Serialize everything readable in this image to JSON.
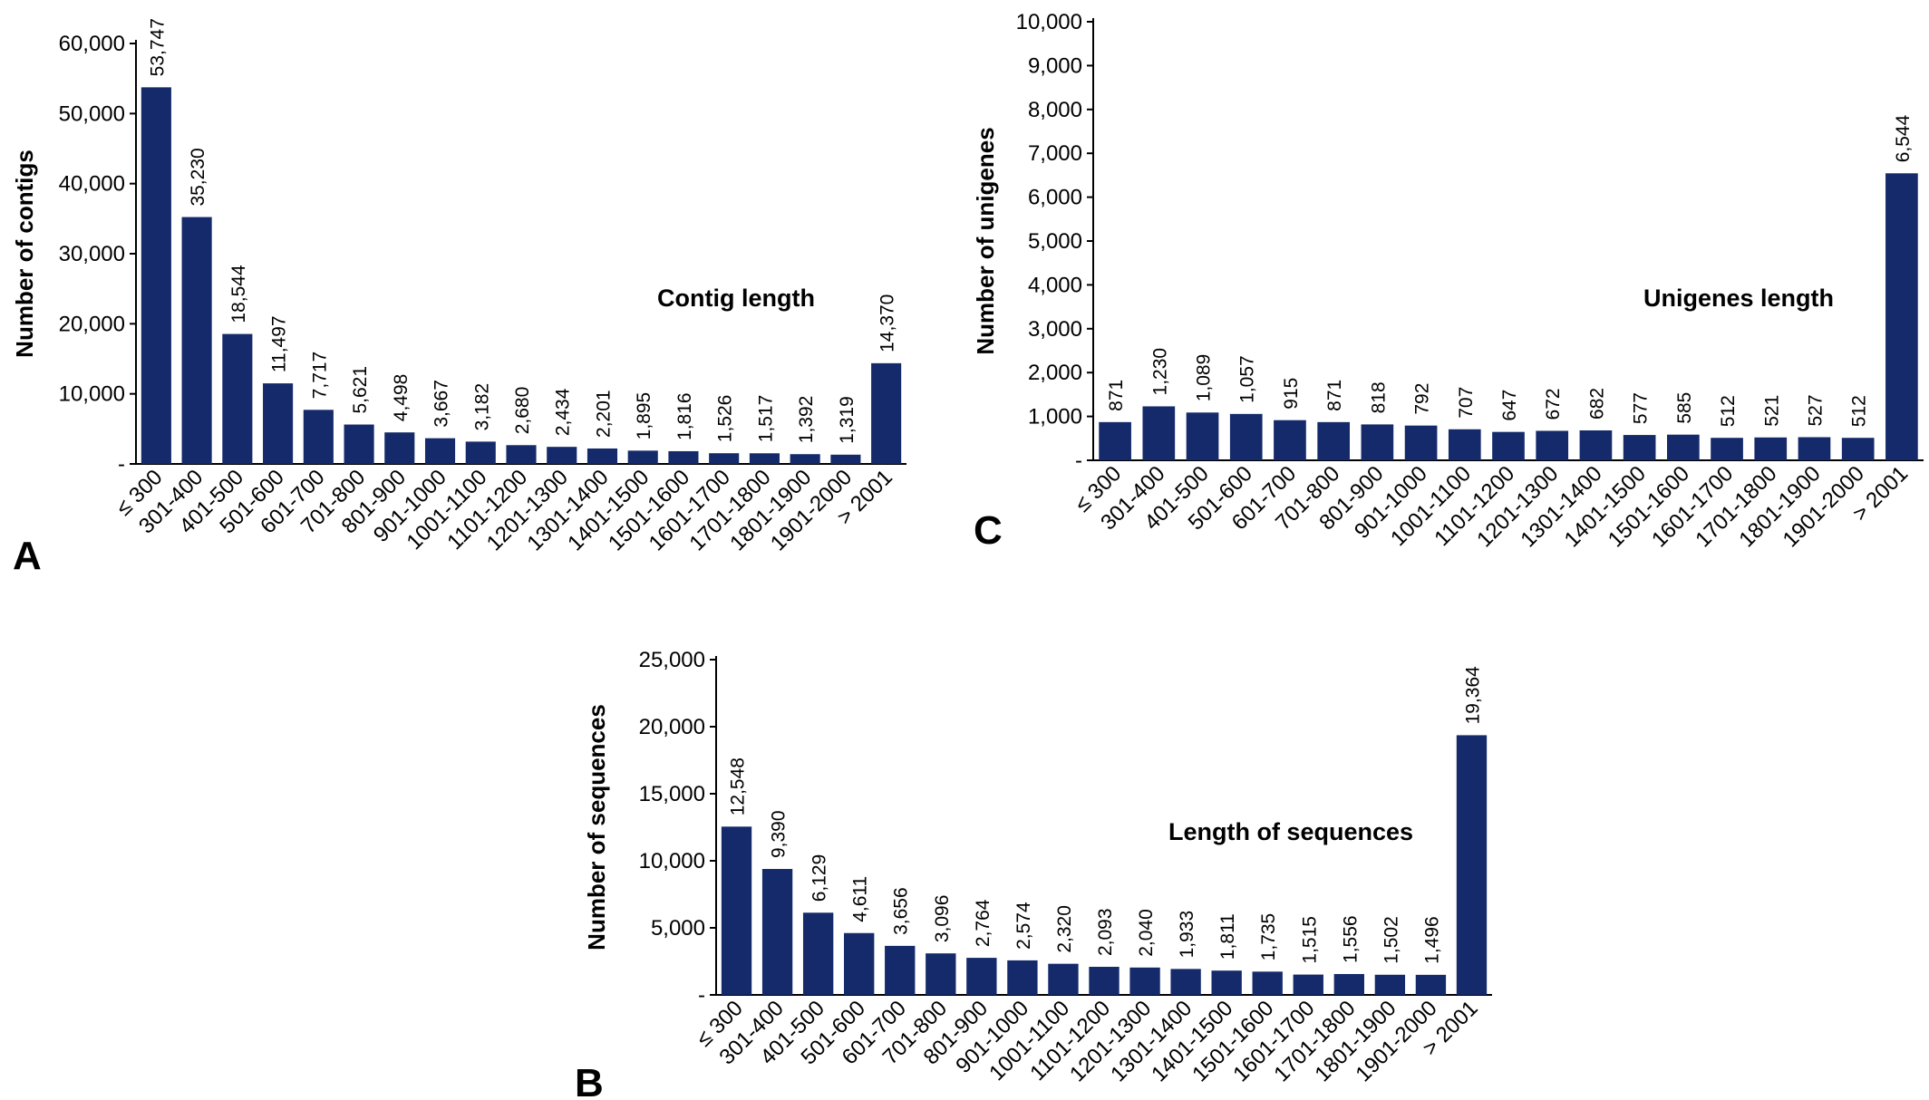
{
  "chart_data": [
    {
      "id": "A",
      "type": "bar",
      "panel_label": "A",
      "title": "Contig length",
      "xlabel": "",
      "ylabel": "Number of contigs",
      "ylim": [
        0,
        60000
      ],
      "yticks": [
        "-",
        "10,000",
        "20,000",
        "30,000",
        "40,000",
        "50,000",
        "60,000"
      ],
      "categories": [
        "≤ 300",
        "301-400",
        "401-500",
        "501-600",
        "601-700",
        "701-800",
        "801-900",
        "901-1000",
        "1001-1100",
        "1101-1200",
        "1201-1300",
        "1301-1400",
        "1401-1500",
        "1501-1600",
        "1601-1700",
        "1701-1800",
        "1801-1900",
        "1901-2000",
        "> 2001"
      ],
      "values": [
        53747,
        35230,
        18544,
        11497,
        7717,
        5621,
        4498,
        3667,
        3182,
        2680,
        2434,
        2201,
        1895,
        1816,
        1526,
        1517,
        1392,
        1319,
        14370
      ],
      "value_labels": [
        "53,747",
        "35,230",
        "18,544",
        "11,497",
        "7,717",
        "5,621",
        "4,498",
        "3,667",
        "3,182",
        "2,680",
        "2,434",
        "2,201",
        "1,895",
        "1,816",
        "1,526",
        "1,517",
        "1,392",
        "1,319",
        "14,370"
      ],
      "bar_color": "#142a6b",
      "grid": false
    },
    {
      "id": "C",
      "type": "bar",
      "panel_label": "C",
      "title": "Unigenes length",
      "xlabel": "",
      "ylabel": "Number of unigenes",
      "ylim": [
        0,
        10000
      ],
      "yticks": [
        "-",
        "1,000",
        "2,000",
        "3,000",
        "4,000",
        "5,000",
        "6,000",
        "7,000",
        "8,000",
        "9,000",
        "10,000"
      ],
      "categories": [
        "≤ 300",
        "301-400",
        "401-500",
        "501-600",
        "601-700",
        "701-800",
        "801-900",
        "901-1000",
        "1001-1100",
        "1101-1200",
        "1201-1300",
        "1301-1400",
        "1401-1500",
        "1501-1600",
        "1601-1700",
        "1701-1800",
        "1801-1900",
        "1901-2000",
        "> 2001"
      ],
      "values": [
        871,
        1230,
        1089,
        1057,
        915,
        871,
        818,
        792,
        707,
        647,
        672,
        682,
        577,
        585,
        512,
        521,
        527,
        512,
        6544
      ],
      "value_labels": [
        "871",
        "1,230",
        "1,089",
        "1,057",
        "915",
        "871",
        "818",
        "792",
        "707",
        "647",
        "672",
        "682",
        "577",
        "585",
        "512",
        "521",
        "527",
        "512",
        "6,544"
      ],
      "bar_color": "#142a6b",
      "grid": false
    },
    {
      "id": "B",
      "type": "bar",
      "panel_label": "B",
      "title": "Length of sequences",
      "xlabel": "",
      "ylabel": "Number of sequences",
      "ylim": [
        0,
        25000
      ],
      "yticks": [
        "-",
        "5,000",
        "10,000",
        "15,000",
        "20,000",
        "25,000"
      ],
      "categories": [
        "≤ 300",
        "301-400",
        "401-500",
        "501-600",
        "601-700",
        "701-800",
        "801-900",
        "901-1000",
        "1001-1100",
        "1101-1200",
        "1201-1300",
        "1301-1400",
        "1401-1500",
        "1501-1600",
        "1601-1700",
        "1701-1800",
        "1801-1900",
        "1901-2000",
        "> 2001"
      ],
      "values": [
        12548,
        9390,
        6129,
        4611,
        3656,
        3096,
        2764,
        2574,
        2320,
        2093,
        2040,
        1933,
        1811,
        1735,
        1515,
        1556,
        1502,
        1496,
        19364
      ],
      "value_labels": [
        "12,548",
        "9,390",
        "6,129",
        "4,611",
        "3,656",
        "3,096",
        "2,764",
        "2,574",
        "2,320",
        "2,093",
        "2,040",
        "1,933",
        "1,811",
        "1,735",
        "1,515",
        "1,556",
        "1,502",
        "1,496",
        "19,364"
      ],
      "bar_color": "#142a6b",
      "grid": false
    }
  ]
}
